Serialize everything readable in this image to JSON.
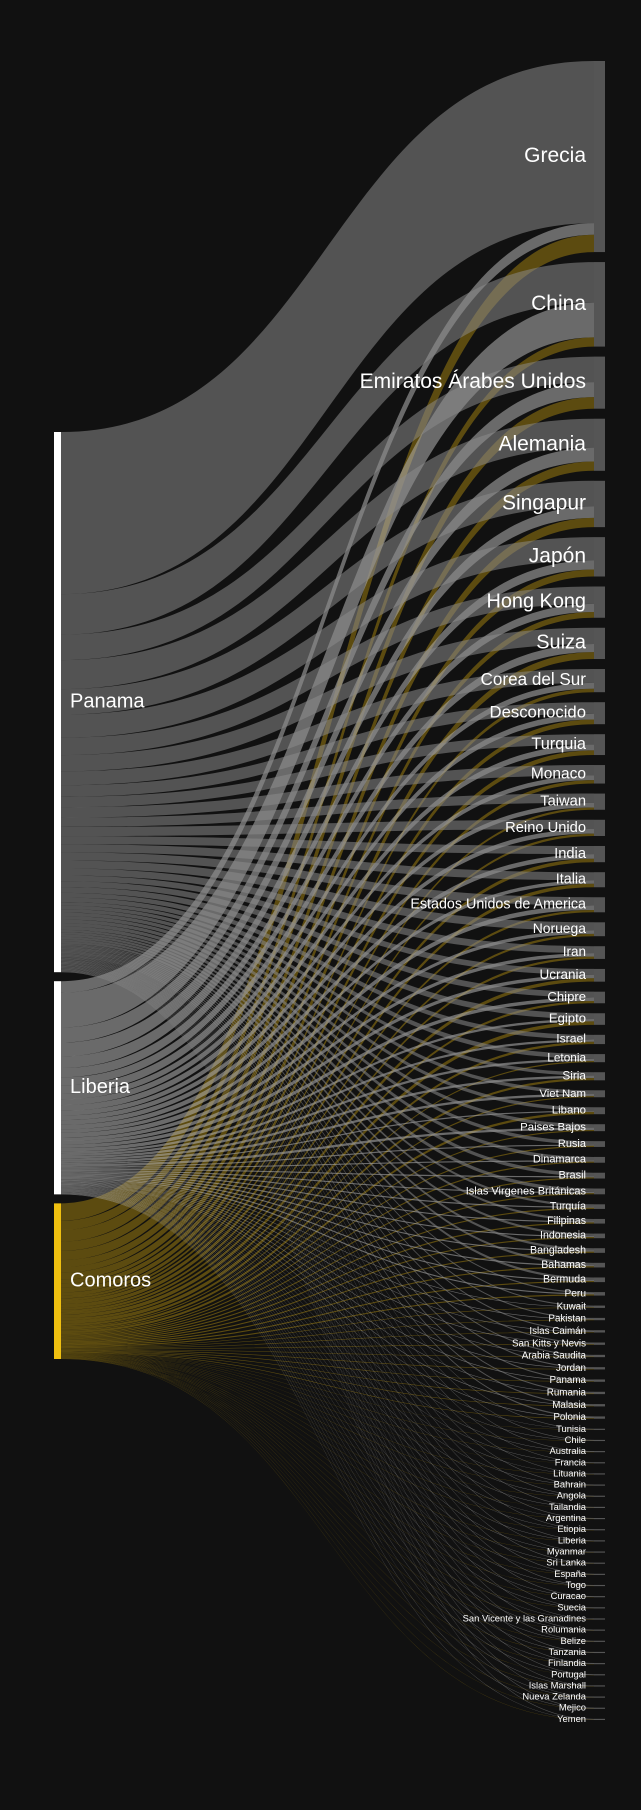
{
  "chart_data": {
    "type": "sankey",
    "target_color": "#555555",
    "sources": [
      {
        "name": "Panama",
        "color": "#ffffff",
        "link_color": "#8a8a8a"
      },
      {
        "name": "Liberia",
        "color": "#ffffff",
        "link_color": "#b4b4b4"
      },
      {
        "name": "Comoros",
        "color": "#f0c010",
        "link_color": "#9a7c10"
      }
    ],
    "targets": [
      {
        "name": "Grecia",
        "values": [
          140,
          10,
          15
        ]
      },
      {
        "name": "China",
        "values": [
          35,
          30,
          8
        ]
      },
      {
        "name": "Emiratos Árabes Unidos",
        "values": [
          22,
          13,
          10
        ]
      },
      {
        "name": "Alemania",
        "values": [
          25,
          12,
          8
        ]
      },
      {
        "name": "Singapur",
        "values": [
          22,
          10,
          8
        ]
      },
      {
        "name": "Japón",
        "values": [
          20,
          8,
          6
        ]
      },
      {
        "name": "Hong Kong",
        "values": [
          15,
          7,
          5
        ]
      },
      {
        "name": "Suiza",
        "values": [
          14,
          7,
          6
        ]
      },
      {
        "name": "Corea del Sur",
        "values": [
          12,
          5,
          3
        ]
      },
      {
        "name": "Desconocido",
        "values": [
          10,
          5,
          4
        ]
      },
      {
        "name": "Turquia",
        "values": [
          9,
          5,
          4
        ]
      },
      {
        "name": "Monaco",
        "values": [
          9,
          4,
          3
        ]
      },
      {
        "name": "Taiwan",
        "values": [
          8,
          4,
          2
        ]
      },
      {
        "name": "Reino Unido",
        "values": [
          8,
          4,
          2
        ]
      },
      {
        "name": "India",
        "values": [
          7,
          4,
          3
        ]
      },
      {
        "name": "Italia",
        "values": [
          7,
          3,
          3
        ]
      },
      {
        "name": "Estados Unidos de America",
        "values": [
          7,
          4,
          2
        ]
      },
      {
        "name": "Noruega",
        "values": [
          7,
          3,
          2
        ]
      },
      {
        "name": "Iran",
        "values": [
          6,
          3,
          2
        ]
      },
      {
        "name": "Ucrania",
        "values": [
          5,
          3,
          3
        ]
      },
      {
        "name": "Chipre",
        "values": [
          5,
          3,
          2
        ]
      },
      {
        "name": "Egipto",
        "values": [
          5,
          2,
          3
        ]
      },
      {
        "name": "Israel",
        "values": [
          4,
          2,
          2
        ]
      },
      {
        "name": "Letonia",
        "values": [
          4,
          2,
          1
        ]
      },
      {
        "name": "Siria",
        "values": [
          3,
          2,
          2
        ]
      },
      {
        "name": "Viet Nam",
        "values": [
          3,
          2,
          1
        ]
      },
      {
        "name": "Libano",
        "values": [
          3,
          1,
          2
        ]
      },
      {
        "name": "Paises Bajos",
        "values": [
          3,
          2,
          1
        ]
      },
      {
        "name": "Rusia",
        "values": [
          3,
          1,
          1
        ]
      },
      {
        "name": "Dinamarca",
        "values": [
          3,
          1,
          1
        ]
      },
      {
        "name": "Brasil",
        "values": [
          3,
          1,
          1
        ]
      },
      {
        "name": "Islas Virgenes Británicas",
        "values": [
          3,
          1,
          1
        ]
      },
      {
        "name": "Turquía",
        "values": [
          2,
          1,
          1
        ]
      },
      {
        "name": "Filipinas",
        "values": [
          2,
          1,
          1
        ]
      },
      {
        "name": "Indonesia",
        "values": [
          2,
          1,
          1
        ]
      },
      {
        "name": "Bangladesh",
        "values": [
          2,
          1,
          1
        ]
      },
      {
        "name": "Bahamas",
        "values": [
          2,
          1,
          1
        ]
      },
      {
        "name": "Bermuda",
        "values": [
          2,
          1,
          1
        ]
      },
      {
        "name": "Peru",
        "values": [
          1,
          1,
          1
        ]
      },
      {
        "name": "Kuwait",
        "values": [
          1,
          0.5,
          0.5
        ]
      },
      {
        "name": "Pakistan",
        "values": [
          1,
          0.5,
          0.5
        ]
      },
      {
        "name": "Islas Caimán",
        "values": [
          1,
          0.5,
          0.5
        ]
      },
      {
        "name": "San Kitts y Nevis",
        "values": [
          1,
          0.5,
          0.5
        ]
      },
      {
        "name": "Arabia Saudita",
        "values": [
          1,
          0.5,
          0.5
        ]
      },
      {
        "name": "Jordan",
        "values": [
          1,
          0.5,
          0.5
        ]
      },
      {
        "name": "Panama",
        "values": [
          1,
          0.5,
          0.5
        ]
      },
      {
        "name": "Rumania",
        "values": [
          1,
          0.5,
          0.5
        ]
      },
      {
        "name": "Malasia",
        "values": [
          1,
          0.5,
          0.5
        ]
      },
      {
        "name": "Polonia",
        "values": [
          1,
          0.5,
          0.5
        ]
      },
      {
        "name": "Tunisia",
        "values": [
          0.5,
          0.3,
          0.2
        ]
      },
      {
        "name": "Chile",
        "values": [
          0.5,
          0.3,
          0.2
        ]
      },
      {
        "name": "Australia",
        "values": [
          0.5,
          0.3,
          0.2
        ]
      },
      {
        "name": "Francia",
        "values": [
          0.5,
          0.3,
          0.2
        ]
      },
      {
        "name": "Lituania",
        "values": [
          0.5,
          0.3,
          0.2
        ]
      },
      {
        "name": "Bahrain",
        "values": [
          0.5,
          0.3,
          0.2
        ]
      },
      {
        "name": "Angola",
        "values": [
          0.5,
          0.3,
          0.2
        ]
      },
      {
        "name": "Tailandia",
        "values": [
          0.5,
          0.3,
          0.2
        ]
      },
      {
        "name": "Argentina",
        "values": [
          0.5,
          0.3,
          0.2
        ]
      },
      {
        "name": "Etiopia",
        "values": [
          0.5,
          0.3,
          0.2
        ]
      },
      {
        "name": "Liberia",
        "values": [
          0.5,
          0.3,
          0.2
        ]
      },
      {
        "name": "Myanmar",
        "values": [
          0.5,
          0.3,
          0.2
        ]
      },
      {
        "name": "Sri Lanka",
        "values": [
          0.5,
          0.3,
          0.2
        ]
      },
      {
        "name": "España",
        "values": [
          0.5,
          0.3,
          0.2
        ]
      },
      {
        "name": "Togo",
        "values": [
          0.5,
          0.3,
          0.2
        ]
      },
      {
        "name": "Curacao",
        "values": [
          0.5,
          0.3,
          0.2
        ]
      },
      {
        "name": "Suecia",
        "values": [
          0.5,
          0.3,
          0.2
        ]
      },
      {
        "name": "San Vicente y las Granadines",
        "values": [
          0.5,
          0.3,
          0.2
        ]
      },
      {
        "name": "Rolumania",
        "values": [
          0.5,
          0.3,
          0.2
        ]
      },
      {
        "name": "Belize",
        "values": [
          0.5,
          0.3,
          0.2
        ]
      },
      {
        "name": "Tanzania",
        "values": [
          0.5,
          0.3,
          0.2
        ]
      },
      {
        "name": "Finlandia",
        "values": [
          0.5,
          0.3,
          0.2
        ]
      },
      {
        "name": "Portugal",
        "values": [
          0.5,
          0.3,
          0.2
        ]
      },
      {
        "name": "Islas Marshall",
        "values": [
          0.5,
          0.3,
          0.2
        ]
      },
      {
        "name": "Nueva Zelanda",
        "values": [
          0.5,
          0.3,
          0.2
        ]
      },
      {
        "name": "Mejico",
        "values": [
          0.5,
          0.3,
          0.2
        ]
      },
      {
        "name": "Yemen",
        "values": [
          0.5,
          0.3,
          0.2
        ]
      }
    ]
  }
}
